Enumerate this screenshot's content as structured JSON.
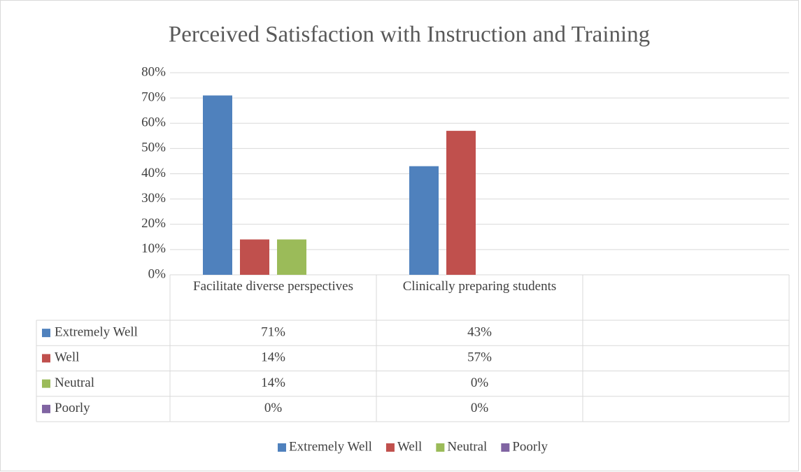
{
  "chart_data": {
    "type": "bar",
    "title": "Perceived Satisfaction with Instruction and Training",
    "categories": [
      "Facilitate diverse perspectives",
      "Clinically preparing students",
      null
    ],
    "series": [
      {
        "name": "Extremely Well",
        "color": "#4f81bd",
        "values": [
          71,
          43,
          null
        ],
        "value_labels": [
          "71%",
          "43%",
          null
        ]
      },
      {
        "name": "Well",
        "color": "#c0504d",
        "values": [
          14,
          57,
          null
        ],
        "value_labels": [
          "14%",
          "57%",
          null
        ]
      },
      {
        "name": "Neutral",
        "color": "#9bbb59",
        "values": [
          14,
          0,
          null
        ],
        "value_labels": [
          "14%",
          "0%",
          null
        ]
      },
      {
        "name": "Poorly",
        "color": "#8064a2",
        "values": [
          0,
          0,
          null
        ],
        "value_labels": [
          "0%",
          "0%",
          null
        ]
      }
    ],
    "ylim": [
      0,
      80
    ],
    "yticks": [
      {
        "value": 0,
        "label": "0%"
      },
      {
        "value": 10,
        "label": "10%"
      },
      {
        "value": 20,
        "label": "20%"
      },
      {
        "value": 30,
        "label": "30%"
      },
      {
        "value": 40,
        "label": "40%"
      },
      {
        "value": 50,
        "label": "50%"
      },
      {
        "value": 60,
        "label": "60%"
      },
      {
        "value": 70,
        "label": "70%"
      },
      {
        "value": 80,
        "label": "80%"
      }
    ],
    "grid": true,
    "legend": "bottom"
  }
}
